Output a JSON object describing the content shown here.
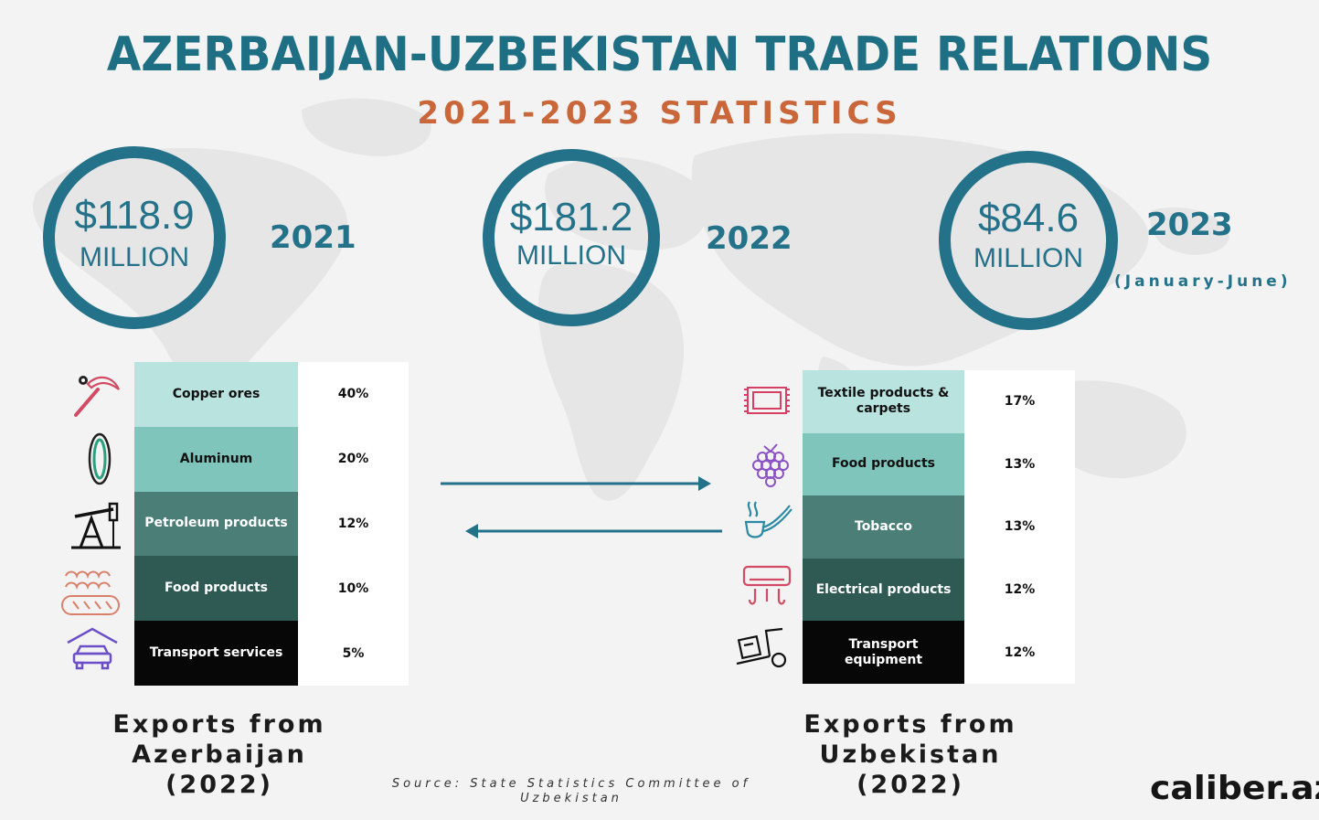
{
  "header": {
    "title": "AZERBAIJAN-UZBEKISTAN TRADE RELATIONS",
    "subtitle": "2021-2023 STATISTICS"
  },
  "colors": {
    "primary": "#23728a",
    "accent": "#c9673a",
    "tier1": "#b8e3df",
    "tier2": "#7fc5bb",
    "tier3": "#4a7e76",
    "tier4": "#2f5a54",
    "tier5": "#070707"
  },
  "chart_data": [
    {
      "type": "table",
      "title": "",
      "items": [
        {
          "year": "2021",
          "amount": "$118.9",
          "unit": "MILLION",
          "note": ""
        },
        {
          "year": "2022",
          "amount": "$181.2",
          "unit": "MILLION",
          "note": ""
        },
        {
          "year": "2023",
          "amount": "$84.6",
          "unit": "MILLION",
          "note": "(January-June)"
        }
      ]
    },
    {
      "type": "table",
      "title": "Exports from Azerbaijan (2022)",
      "caption_line1": "Exports from Azerbaijan",
      "caption_line2": "(2022)",
      "categories": [
        "Copper ores",
        "Aluminum",
        "Petroleum products",
        "Food products",
        "Transport services"
      ],
      "labels": [
        "40%",
        "20%",
        "12%",
        "10%",
        "5%"
      ],
      "values": [
        40,
        20,
        12,
        10,
        5
      ],
      "icons": [
        "pickaxe-icon",
        "aluminum-ring-icon",
        "oil-pump-icon",
        "bread-icon",
        "garage-car-icon"
      ]
    },
    {
      "type": "table",
      "title": "Exports from Uzbekistan (2022)",
      "caption_line1": "Exports from Uzbekistan",
      "caption_line2": "(2022)",
      "categories": [
        "Textile products & carpets",
        "Food products",
        "Tobacco",
        "Electrical products",
        "Transport equipment"
      ],
      "labels": [
        "17%",
        "13%",
        "13%",
        "12%",
        "12%"
      ],
      "values": [
        17,
        13,
        13,
        12,
        12
      ],
      "icons": [
        "carpet-icon",
        "raspberry-icon",
        "smoking-pipe-icon",
        "air-conditioner-icon",
        "hand-truck-icon"
      ]
    }
  ],
  "footer": {
    "source_line1": "Source: State Statistics Committee of",
    "source_line2": "Uzbekistan",
    "brand": "caliber.az"
  }
}
